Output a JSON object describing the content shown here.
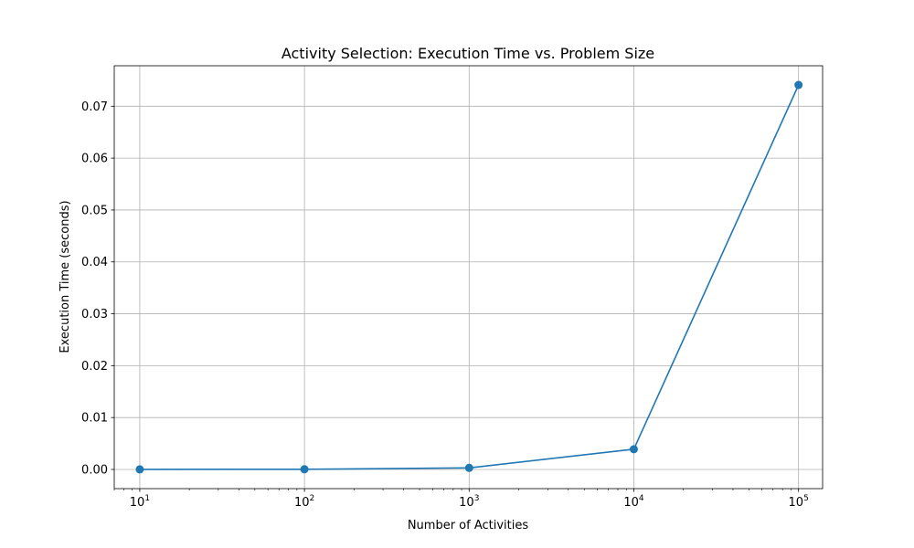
{
  "chart_data": {
    "type": "line",
    "title": "Activity Selection: Execution Time vs. Problem Size",
    "xlabel": "Number of Activities",
    "ylabel": "Execution Time (seconds)",
    "x_scale": "log",
    "x_ticks": [
      {
        "value": 10,
        "base": "10",
        "exp": "1"
      },
      {
        "value": 100,
        "base": "10",
        "exp": "2"
      },
      {
        "value": 1000,
        "base": "10",
        "exp": "3"
      },
      {
        "value": 10000,
        "base": "10",
        "exp": "4"
      },
      {
        "value": 100000,
        "base": "10",
        "exp": "5"
      }
    ],
    "y_ticks": [
      "0.00",
      "0.01",
      "0.02",
      "0.03",
      "0.04",
      "0.05",
      "0.06",
      "0.07"
    ],
    "xlim": [
      7,
      140000
    ],
    "ylim": [
      -0.0037,
      0.0778
    ],
    "grid": true,
    "series": [
      {
        "color": "#1f77b4",
        "marker": "circle",
        "x": [
          10,
          100,
          1000,
          10000,
          100000
        ],
        "y": [
          1e-05,
          3e-05,
          0.0003,
          0.0039,
          0.0741
        ]
      }
    ]
  }
}
